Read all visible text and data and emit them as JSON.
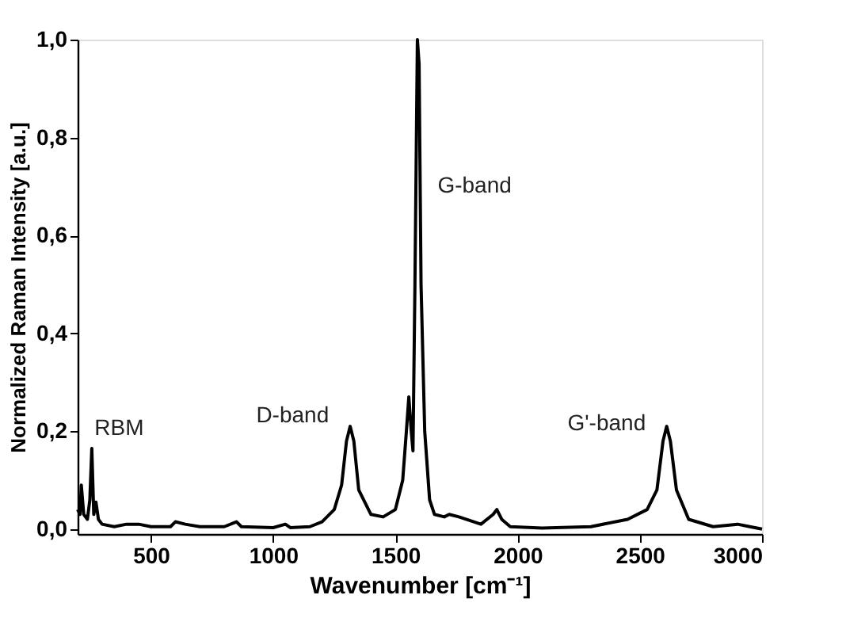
{
  "chart_data": {
    "type": "line",
    "xlabel": "Wavenumber [cm⁻¹]",
    "ylabel": "Normalized Raman Intensity [a.u.]",
    "xlim": [
      200,
      3000
    ],
    "xticks": [
      {
        "value": 500,
        "label": "500"
      },
      {
        "value": 1000,
        "label": "1000"
      },
      {
        "value": 1500,
        "label": "1500"
      },
      {
        "value": 2000,
        "label": "2000"
      },
      {
        "value": 2500,
        "label": "2500"
      },
      {
        "value": 3000,
        "label": "3000"
      }
    ],
    "ylim": [
      -0.01,
      1.0
    ],
    "yticks": [
      {
        "value": 0,
        "label": "0,0"
      },
      {
        "value": 0.2,
        "label": "0,2"
      },
      {
        "value": 0.4,
        "label": "0,4"
      },
      {
        "value": 0.6,
        "label": "0,6"
      },
      {
        "value": 0.8,
        "label": "0,8"
      },
      {
        "value": 1.0,
        "label": "1,0"
      }
    ],
    "grid": false,
    "marker": "none",
    "line_style": "solid",
    "series": [
      {
        "color": "#000000",
        "x": [
          200,
          210,
          215,
          225,
          240,
          250,
          258,
          266,
          275,
          285,
          300,
          350,
          400,
          450,
          500,
          580,
          600,
          640,
          700,
          800,
          850,
          870,
          1000,
          1050,
          1070,
          1150,
          1200,
          1250,
          1280,
          1300,
          1315,
          1330,
          1350,
          1400,
          1450,
          1500,
          1530,
          1545,
          1555,
          1565,
          1572,
          1580,
          1590,
          1597,
          1605,
          1620,
          1640,
          1660,
          1700,
          1720,
          1760,
          1850,
          1900,
          1915,
          1935,
          1970,
          2100,
          2300,
          2450,
          2530,
          2570,
          2595,
          2610,
          2625,
          2650,
          2700,
          2800,
          2900,
          2950,
          3000
        ],
        "values": [
          0.04,
          0.03,
          0.09,
          0.03,
          0.02,
          0.06,
          0.165,
          0.03,
          0.055,
          0.02,
          0.01,
          0.005,
          0.01,
          0.01,
          0.005,
          0.005,
          0.015,
          0.01,
          0.005,
          0.005,
          0.015,
          0.005,
          0.003,
          0.01,
          0.003,
          0.005,
          0.015,
          0.04,
          0.09,
          0.18,
          0.21,
          0.18,
          0.08,
          0.03,
          0.025,
          0.04,
          0.1,
          0.2,
          0.27,
          0.2,
          0.16,
          0.5,
          1.0,
          0.95,
          0.5,
          0.2,
          0.06,
          0.03,
          0.025,
          0.03,
          0.025,
          0.01,
          0.03,
          0.04,
          0.02,
          0.005,
          0.002,
          0.005,
          0.02,
          0.04,
          0.08,
          0.18,
          0.21,
          0.18,
          0.08,
          0.02,
          0.005,
          0.01,
          0.005,
          0.0
        ]
      }
    ],
    "annotations": [
      "RBM",
      "D-band",
      "G-band",
      "G'-band"
    ]
  }
}
